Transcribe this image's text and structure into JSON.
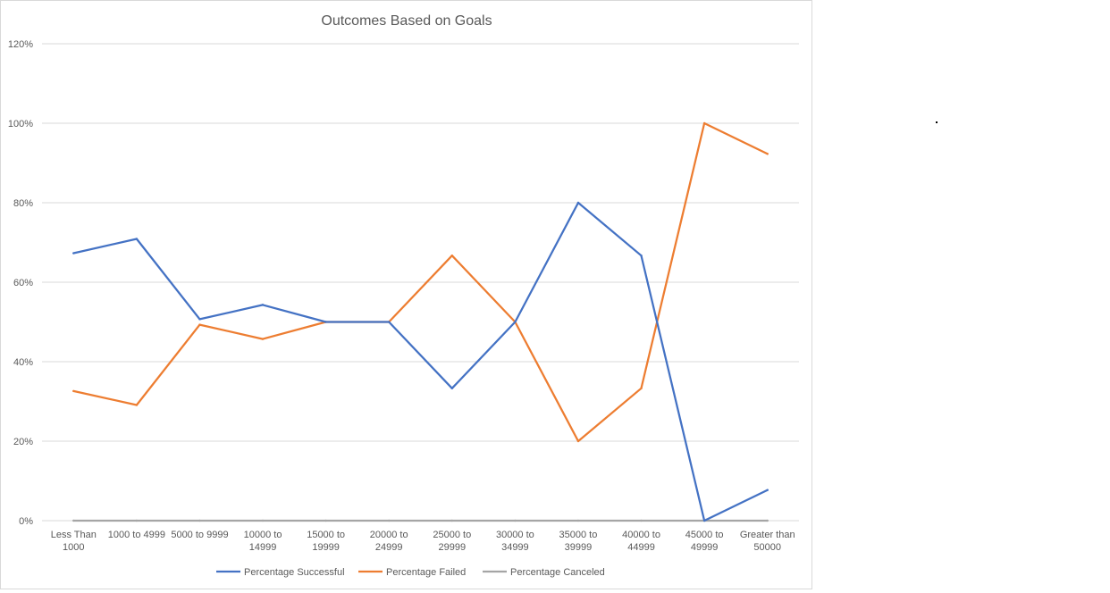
{
  "chart_data": {
    "type": "line",
    "title": "Outcomes Based on Goals",
    "xlabel": "",
    "ylabel": "",
    "ylim": [
      0,
      1.2
    ],
    "yticks": [
      0,
      0.2,
      0.4,
      0.6,
      0.8,
      1.0,
      1.2
    ],
    "ytick_labels": [
      "0%",
      "20%",
      "40%",
      "60%",
      "80%",
      "100%",
      "120%"
    ],
    "grid": true,
    "legend_position": "bottom",
    "categories": [
      "Less Than 1000",
      "1000 to 4999",
      "5000 to 9999",
      "10000 to 14999",
      "15000 to 19999",
      "20000 to 24999",
      "25000 to 29999",
      "30000 to 34999",
      "35000 to 39999",
      "40000 to 44999",
      "45000 to 49999",
      "Greater than 50000"
    ],
    "category_label_lines": [
      [
        "Less Than",
        "1000"
      ],
      [
        "1000 to 4999"
      ],
      [
        "5000 to 9999"
      ],
      [
        "10000 to",
        "14999"
      ],
      [
        "15000 to",
        "19999"
      ],
      [
        "20000 to",
        "24999"
      ],
      [
        "25000 to",
        "29999"
      ],
      [
        "30000 to",
        "34999"
      ],
      [
        "35000 to",
        "39999"
      ],
      [
        "40000 to",
        "44999"
      ],
      [
        "45000 to",
        "49999"
      ],
      [
        "Greater than",
        "50000"
      ]
    ],
    "series": [
      {
        "name": "Percentage Successful",
        "color": "#4472C4",
        "values": [
          0.673,
          0.709,
          0.507,
          0.543,
          0.5,
          0.5,
          0.333,
          0.5,
          0.8,
          0.667,
          0.0,
          0.077
        ]
      },
      {
        "name": "Percentage Failed",
        "color": "#ED7D31",
        "values": [
          0.326,
          0.291,
          0.493,
          0.457,
          0.5,
          0.5,
          0.667,
          0.5,
          0.2,
          0.333,
          1.0,
          0.923
        ]
      },
      {
        "name": "Percentage Canceled",
        "color": "#A5A5A5",
        "values": [
          0,
          0,
          0,
          0,
          0,
          0,
          0,
          0,
          0,
          0,
          0,
          0
        ]
      }
    ]
  }
}
